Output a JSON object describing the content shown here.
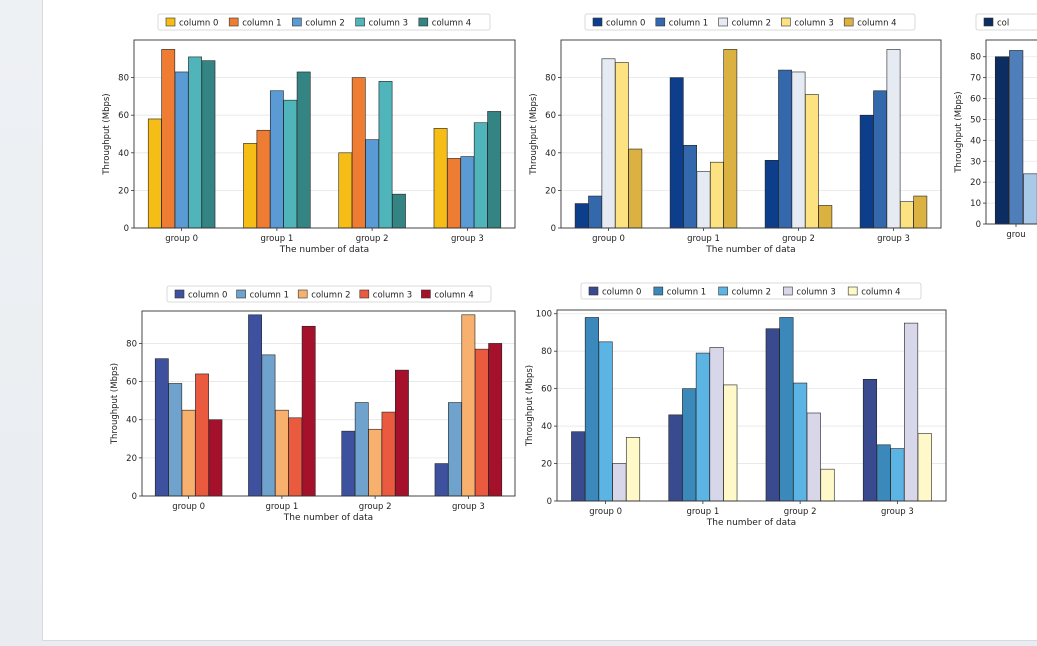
{
  "chart_data": [
    {
      "type": "bar",
      "title": "",
      "xlabel": "The number of data",
      "ylabel": "Throughput (Mbps)",
      "ylim": [
        0,
        100
      ],
      "yticks": [
        0,
        20,
        40,
        60,
        80
      ],
      "categories": [
        "group 0",
        "group 1",
        "group 2",
        "group 3"
      ],
      "legend_position": "top",
      "series": [
        {
          "name": "column 0",
          "color": "#f6bd16",
          "values": [
            58,
            45,
            40,
            53
          ]
        },
        {
          "name": "column 1",
          "color": "#ee7d33",
          "values": [
            95,
            52,
            80,
            37
          ]
        },
        {
          "name": "column 2",
          "color": "#5b9bd5",
          "values": [
            83,
            73,
            47,
            38
          ]
        },
        {
          "name": "column 3",
          "color": "#4fb5bb",
          "values": [
            91,
            68,
            78,
            56
          ]
        },
        {
          "name": "column 4",
          "color": "#338482",
          "values": [
            89,
            83,
            18,
            62
          ]
        }
      ]
    },
    {
      "type": "bar",
      "title": "",
      "xlabel": "The number of data",
      "ylabel": "Throughput (Mbps)",
      "ylim": [
        0,
        100
      ],
      "yticks": [
        0,
        20,
        40,
        60,
        80
      ],
      "categories": [
        "group 0",
        "group 1",
        "group 2",
        "group 3"
      ],
      "legend_position": "top",
      "series": [
        {
          "name": "column 0",
          "color": "#0c3e8c",
          "values": [
            13,
            80,
            36,
            60
          ]
        },
        {
          "name": "column 1",
          "color": "#3468ad",
          "values": [
            17,
            44,
            84,
            73
          ]
        },
        {
          "name": "column 2",
          "color": "#e6ebf3",
          "values": [
            90,
            30,
            83,
            95
          ]
        },
        {
          "name": "column 3",
          "color": "#fce281",
          "values": [
            88,
            35,
            71,
            14
          ]
        },
        {
          "name": "column 4",
          "color": "#dbb142",
          "values": [
            42,
            95,
            12,
            17
          ]
        }
      ]
    },
    {
      "type": "bar",
      "title": "",
      "xlabel": "",
      "ylabel": "Throughput (Mbps)",
      "ylim": [
        0,
        88
      ],
      "yticks": [
        0,
        10,
        20,
        30,
        40,
        50,
        60,
        70,
        80
      ],
      "categories": [
        "grou"
      ],
      "legend_position": "top",
      "series": [
        {
          "name": "col",
          "color": "#0c2d61",
          "values": [
            80
          ]
        },
        {
          "name": "",
          "color": "#4f7fba",
          "values": [
            83
          ]
        },
        {
          "name": "",
          "color": "#a9c9e8",
          "values": [
            24
          ]
        }
      ]
    },
    {
      "type": "bar",
      "title": "",
      "xlabel": "The number of data",
      "ylabel": "Throughput (Mbps)",
      "ylim": [
        0,
        97
      ],
      "yticks": [
        0,
        20,
        40,
        60,
        80
      ],
      "categories": [
        "group 0",
        "group 1",
        "group 2",
        "group 3"
      ],
      "legend_position": "top",
      "series": [
        {
          "name": "column 0",
          "color": "#3e519e",
          "values": [
            72,
            95,
            34,
            17
          ]
        },
        {
          "name": "column 1",
          "color": "#6fa3cd",
          "values": [
            59,
            74,
            49,
            49
          ]
        },
        {
          "name": "column 2",
          "color": "#f7b06e",
          "values": [
            45,
            45,
            35,
            95
          ]
        },
        {
          "name": "column 3",
          "color": "#e95a3f",
          "values": [
            64,
            41,
            44,
            77
          ]
        },
        {
          "name": "column 4",
          "color": "#a5102b",
          "values": [
            40,
            89,
            66,
            80
          ]
        }
      ]
    },
    {
      "type": "bar",
      "title": "",
      "xlabel": "The number of data",
      "ylabel": "Throughput (Mbps)",
      "ylim": [
        0,
        102
      ],
      "yticks": [
        0,
        20,
        40,
        60,
        80,
        100
      ],
      "categories": [
        "group 0",
        "group 1",
        "group 2",
        "group 3"
      ],
      "legend_position": "top",
      "series": [
        {
          "name": "column 0",
          "color": "#3a4a8e",
          "values": [
            37,
            46,
            92,
            65
          ]
        },
        {
          "name": "column 1",
          "color": "#3b88ba",
          "values": [
            98,
            60,
            98,
            30
          ]
        },
        {
          "name": "column 2",
          "color": "#5cb4e5",
          "values": [
            85,
            79,
            63,
            28
          ]
        },
        {
          "name": "column 3",
          "color": "#d8d7ea",
          "values": [
            20,
            82,
            47,
            95
          ]
        },
        {
          "name": "column 4",
          "color": "#fff8c8",
          "values": [
            34,
            62,
            17,
            36
          ]
        }
      ]
    }
  ]
}
